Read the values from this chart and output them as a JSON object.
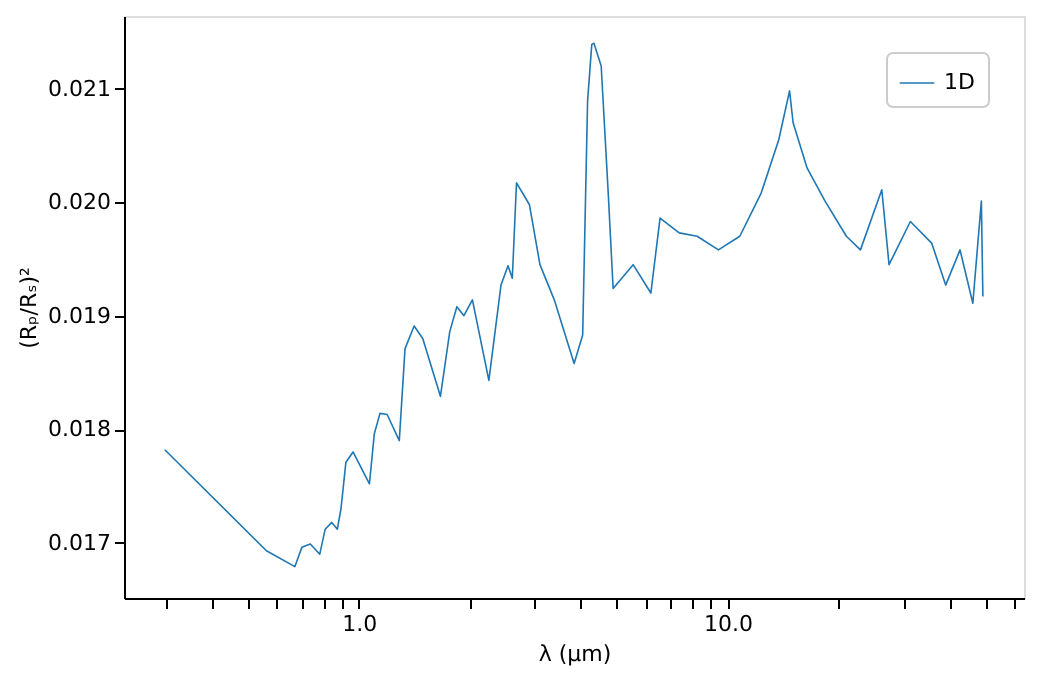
{
  "chart_data": {
    "type": "line",
    "xlabel": "λ (μm)",
    "ylabel": "(Rₚ/Rₛ)²",
    "log": "x",
    "grid": false,
    "legend": "top right",
    "marker": "none",
    "line_style": "solid",
    "xlim": [
      0.231,
      63.6
    ],
    "ylim": [
      0.016514,
      0.02164
    ],
    "xticks": [
      {
        "value": 0.3,
        "label": null
      },
      {
        "value": 0.4,
        "label": null
      },
      {
        "value": 0.5,
        "label": null
      },
      {
        "value": 0.6,
        "label": null
      },
      {
        "value": 0.7,
        "label": null
      },
      {
        "value": 0.8,
        "label": null
      },
      {
        "value": 0.9,
        "label": null
      },
      {
        "value": 1,
        "label": "1.0"
      },
      {
        "value": 2,
        "label": null
      },
      {
        "value": 3,
        "label": null
      },
      {
        "value": 4,
        "label": null
      },
      {
        "value": 5,
        "label": null
      },
      {
        "value": 6,
        "label": null
      },
      {
        "value": 7,
        "label": null
      },
      {
        "value": 8,
        "label": null
      },
      {
        "value": 9,
        "label": null
      },
      {
        "value": 10,
        "label": "10.0"
      },
      {
        "value": 20,
        "label": null
      },
      {
        "value": 30,
        "label": null
      },
      {
        "value": 40,
        "label": null
      },
      {
        "value": 50,
        "label": null
      },
      {
        "value": 60,
        "label": null
      }
    ],
    "yticks": [
      0.017,
      0.018,
      0.019,
      {
        "value": 0.02,
        "label": "0.020"
      },
      0.021
    ],
    "series": [
      {
        "name": "1D",
        "color": "#1f77b4",
        "x": [
          0.298,
          0.562,
          0.671,
          0.701,
          0.739,
          0.784,
          0.811,
          0.845,
          0.875,
          0.895,
          0.923,
          0.965,
          1.069,
          1.102,
          1.142,
          1.194,
          1.288,
          1.335,
          1.413,
          1.491,
          1.665,
          1.765,
          1.845,
          1.928,
          2.033,
          2.253,
          2.43,
          2.539,
          2.608,
          2.677,
          2.901,
          3.099,
          3.389,
          3.836,
          4.046,
          4.172,
          4.283,
          4.341,
          4.542,
          4.746,
          4.893,
          5.545,
          6.193,
          6.559,
          7.393,
          8.268,
          9.443,
          10.79,
          12.33,
          13.76,
          14.72,
          15.05,
          16.43,
          18.37,
          20.99,
          22.91,
          26.18,
          27.39,
          31.29,
          35.74,
          39.01,
          42.66,
          46.21,
          48.74,
          49.2
        ],
        "values": [
          0.01782,
          0.01693,
          0.01679,
          0.01696,
          0.01699,
          0.0169,
          0.01712,
          0.01718,
          0.01712,
          0.0173,
          0.01771,
          0.0178,
          0.01752,
          0.01796,
          0.01814,
          0.01813,
          0.0179,
          0.01871,
          0.01891,
          0.0188,
          0.01829,
          0.01886,
          0.01908,
          0.019,
          0.01914,
          0.01843,
          0.01927,
          0.01944,
          0.01933,
          0.02017,
          0.01998,
          0.01945,
          0.01914,
          0.01858,
          0.01883,
          0.02089,
          0.02139,
          0.0214,
          0.0212,
          0.02008,
          0.01924,
          0.01945,
          0.0192,
          0.01986,
          0.01973,
          0.0197,
          0.01958,
          0.0197,
          0.02008,
          0.02055,
          0.02098,
          0.0207,
          0.0203,
          0.02001,
          0.0197,
          0.01958,
          0.02011,
          0.01945,
          0.01983,
          0.01964,
          0.01927,
          0.01958,
          0.01911,
          0.02001,
          0.01917
        ]
      }
    ]
  }
}
